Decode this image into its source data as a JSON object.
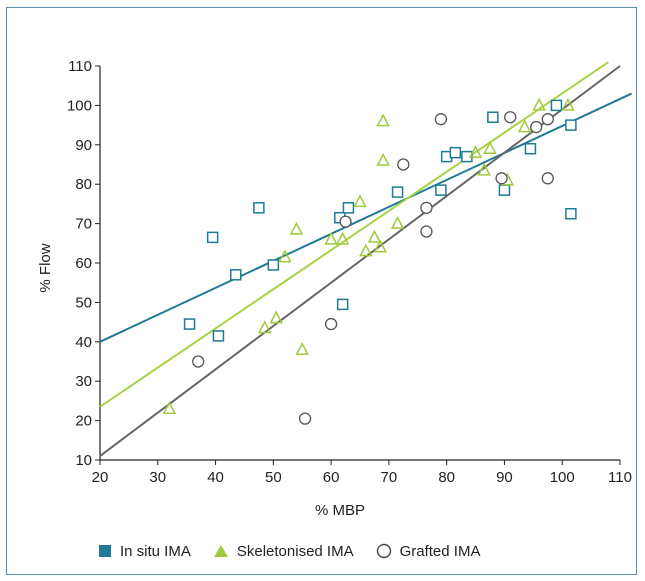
{
  "chart_data": {
    "type": "scatter",
    "xlabel": "% MBP",
    "ylabel": "% Flow",
    "xlim": [
      20,
      110
    ],
    "ylim": [
      10,
      110
    ],
    "xticks": [
      20,
      30,
      40,
      50,
      60,
      70,
      80,
      90,
      100,
      110
    ],
    "yticks": [
      10,
      20,
      30,
      40,
      50,
      60,
      70,
      80,
      90,
      100,
      110
    ],
    "grid": false,
    "legend_position": "bottom",
    "series": [
      {
        "name": "In situ IMA",
        "marker": "square",
        "color": "#1e7a95",
        "points": [
          [
            35.5,
            44.5
          ],
          [
            39.5,
            66.5
          ],
          [
            40.5,
            41.5
          ],
          [
            43.5,
            57
          ],
          [
            47.5,
            74
          ],
          [
            50,
            59.5
          ],
          [
            61.5,
            71.5
          ],
          [
            62,
            49.5
          ],
          [
            63,
            74
          ],
          [
            71.5,
            78
          ],
          [
            79,
            78.5
          ],
          [
            80,
            87
          ],
          [
            81.5,
            88
          ],
          [
            83.5,
            87
          ],
          [
            88,
            97
          ],
          [
            90,
            78.5
          ],
          [
            94.5,
            89
          ],
          [
            99,
            100
          ],
          [
            101.5,
            95
          ],
          [
            101.5,
            72.5
          ]
        ],
        "trend": [
          [
            20,
            40
          ],
          [
            112,
            103
          ]
        ]
      },
      {
        "name": "Skeletonised IMA",
        "marker": "triangle",
        "color": "#9fca3c",
        "points": [
          [
            32,
            23
          ],
          [
            48.5,
            43.5
          ],
          [
            50.5,
            46
          ],
          [
            52,
            61.5
          ],
          [
            54,
            68.5
          ],
          [
            55,
            38
          ],
          [
            60,
            66
          ],
          [
            62,
            66
          ],
          [
            65,
            75.5
          ],
          [
            66,
            63
          ],
          [
            67.5,
            66.5
          ],
          [
            68.5,
            64
          ],
          [
            69,
            96
          ],
          [
            69,
            86
          ],
          [
            71.5,
            70
          ],
          [
            85,
            88
          ],
          [
            86.5,
            83.5
          ],
          [
            87.5,
            89
          ],
          [
            90.5,
            81
          ],
          [
            93.5,
            94.5
          ],
          [
            96,
            100
          ],
          [
            101,
            100
          ]
        ],
        "trend": [
          [
            20,
            23.5
          ],
          [
            108,
            111
          ]
        ]
      },
      {
        "name": "Grafted IMA",
        "marker": "circle",
        "color": "#555555",
        "points": [
          [
            37,
            35
          ],
          [
            55.5,
            20.5
          ],
          [
            60,
            44.5
          ],
          [
            62.5,
            70.5
          ],
          [
            72.5,
            85
          ],
          [
            76.5,
            68
          ],
          [
            76.5,
            74
          ],
          [
            79,
            96.5
          ],
          [
            89.5,
            81.5
          ],
          [
            91,
            97
          ],
          [
            95.5,
            94.5
          ],
          [
            97.5,
            96.5
          ],
          [
            97.5,
            81.5
          ]
        ],
        "trend": [
          [
            20,
            11
          ],
          [
            110,
            110
          ]
        ]
      }
    ]
  }
}
